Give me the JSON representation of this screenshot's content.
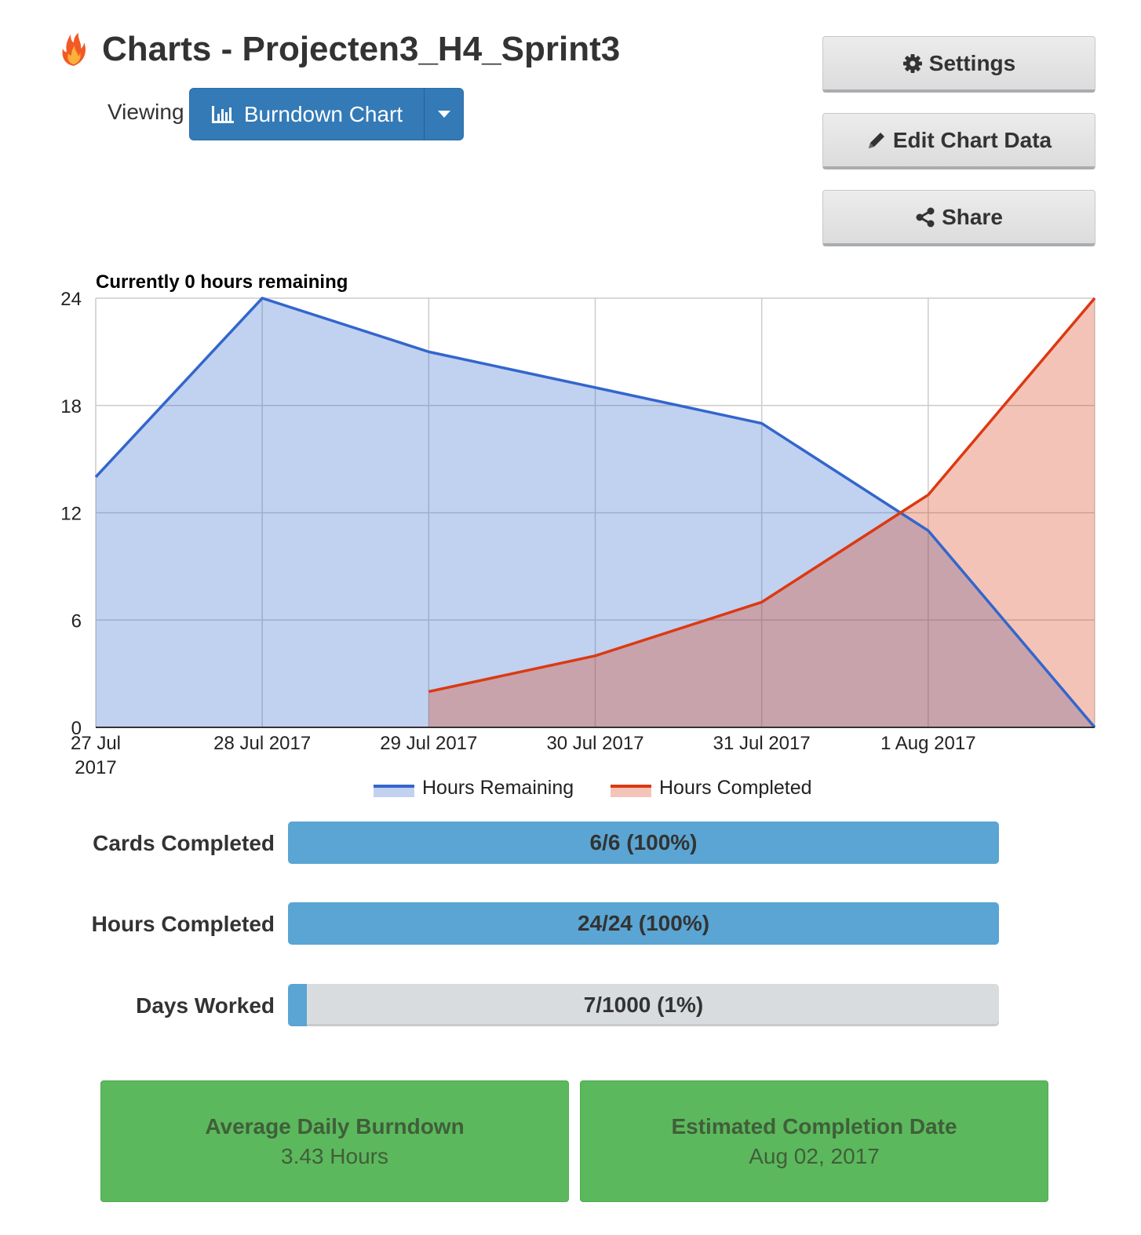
{
  "header": {
    "title": "Charts - Projecten3_H4_Sprint3",
    "viewing_label": "Viewing",
    "view_selector": {
      "label": "Burndown Chart",
      "icon": "bar-chart-icon"
    }
  },
  "actions": {
    "settings": {
      "label": "Settings",
      "icon": "gear-icon"
    },
    "edit_chart_data": {
      "label": "Edit Chart Data",
      "icon": "pencil-icon"
    },
    "share": {
      "label": "Share",
      "icon": "share-icon"
    }
  },
  "chart_data": {
    "type": "area",
    "title": "Currently 0 hours remaining",
    "x": [
      "27 Jul 2017",
      "28 Jul 2017",
      "29 Jul 2017",
      "30 Jul 2017",
      "31 Jul 2017",
      "1 Aug 2017",
      "2 Aug 2017"
    ],
    "x_tick_labels": [
      "27 Jul 2017",
      "28 Jul 2017",
      "29 Jul 2017",
      "30 Jul 2017",
      "31 Jul 2017",
      "1 Aug 2017"
    ],
    "series": [
      {
        "name": "Hours Remaining",
        "color": "#3366cc",
        "fill": "#c2d1f0",
        "values": [
          14,
          24,
          21,
          19,
          17,
          11,
          0
        ]
      },
      {
        "name": "Hours Completed",
        "color": "#dc3912",
        "fill": "#f4c4b8",
        "values": [
          null,
          null,
          2,
          4,
          7,
          13,
          24
        ]
      }
    ],
    "ylim": [
      0,
      24
    ],
    "yticks": [
      0,
      6,
      12,
      18,
      24
    ],
    "grid": true,
    "legend": "bottom"
  },
  "progress": [
    {
      "label": "Cards Completed",
      "text": "6/6 (100%)",
      "fraction": 1.0
    },
    {
      "label": "Hours Completed",
      "text": "24/24 (100%)",
      "fraction": 1.0
    },
    {
      "label": "Days Worked",
      "text": "7/1000 (1%)",
      "fraction": 0.007
    }
  ],
  "stats": [
    {
      "title": "Average Daily Burndown",
      "value": "3.43 Hours"
    },
    {
      "title": "Estimated Completion Date",
      "value": "Aug 02, 2017"
    }
  ],
  "colors": {
    "primary": "#337ab7",
    "progress": "#5aa5d3",
    "success": "#5cb85c"
  }
}
